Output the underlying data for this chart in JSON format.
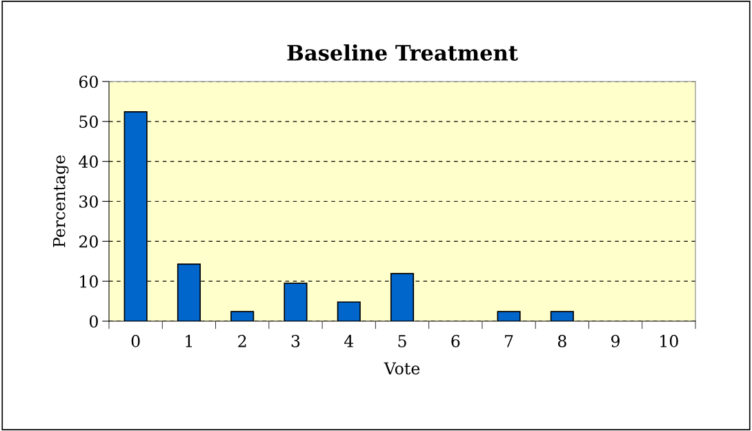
{
  "chart_data": {
    "type": "bar",
    "title": "Baseline Treatment",
    "xlabel": "Vote",
    "ylabel": "Percentage",
    "categories": [
      "0",
      "1",
      "2",
      "3",
      "4",
      "5",
      "6",
      "7",
      "8",
      "9",
      "10"
    ],
    "values": [
      52.4,
      14.3,
      2.4,
      9.5,
      4.8,
      11.9,
      0,
      2.4,
      2.4,
      0,
      0
    ],
    "color": "#0066cc",
    "ylim": [
      0,
      60
    ],
    "yticks": [
      0,
      10,
      20,
      30,
      40,
      50,
      60
    ],
    "grid": "y",
    "line_style": "dashed"
  }
}
